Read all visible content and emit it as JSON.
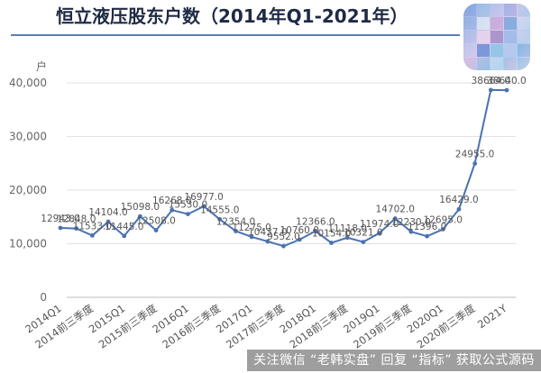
{
  "title": "恒立液压股东户数（2014年Q1-2021年）",
  "watermark": "关注微信 “老韩实盘” 回复 “指标” 获取公式源码",
  "chart_data": {
    "type": "line",
    "title": "恒立液压股东户数（2014年Q1-2021年）",
    "ylabel": "户",
    "xlabel": "",
    "ylim": [
      0,
      40000
    ],
    "yticks": [
      0,
      10000,
      20000,
      30000,
      40000
    ],
    "ytick_labels": [
      "0",
      "10,000",
      "20,000",
      "30,000",
      "40,000"
    ],
    "grid": true,
    "legend": "none",
    "color": "#4a72b0",
    "x_tick_labels": [
      "2014Q1",
      "2014前三季度",
      "2015Q1",
      "2015前三季度",
      "2016Q1",
      "2016前三季度",
      "2017Q1",
      "2017前三季度",
      "2018Q1",
      "2018前三季度",
      "2019Q1",
      "2019前三季度",
      "2020Q1",
      "2020前三季度",
      "2021Y"
    ],
    "values": [
      12943,
      12848,
      11533,
      14104,
      11445,
      15098,
      12508,
      16268,
      15530,
      16977,
      14555,
      12354,
      11275,
      10437,
      9552,
      10760,
      12366,
      10154,
      11118,
      10321,
      11974,
      14702,
      12230,
      11396,
      12695,
      16429,
      24955,
      38664,
      38640
    ],
    "labels": [
      "12943.0",
      "12848.0",
      "11533.0",
      "14104.0",
      "11445.0",
      "15098.0",
      "12508.0",
      "16268.0",
      "15530.0",
      "16977.0",
      "14555.0",
      "12354.0",
      "11275.0",
      "10437.0",
      "9552.0",
      "10760.0",
      "12366.0",
      "10154.0",
      "11118.0",
      "10321.0",
      "11974.0",
      "14702.0",
      "12230.0",
      "11396.0",
      "12695.0",
      "16429.0",
      "24955.0",
      "38664.0",
      "38640.0"
    ]
  }
}
